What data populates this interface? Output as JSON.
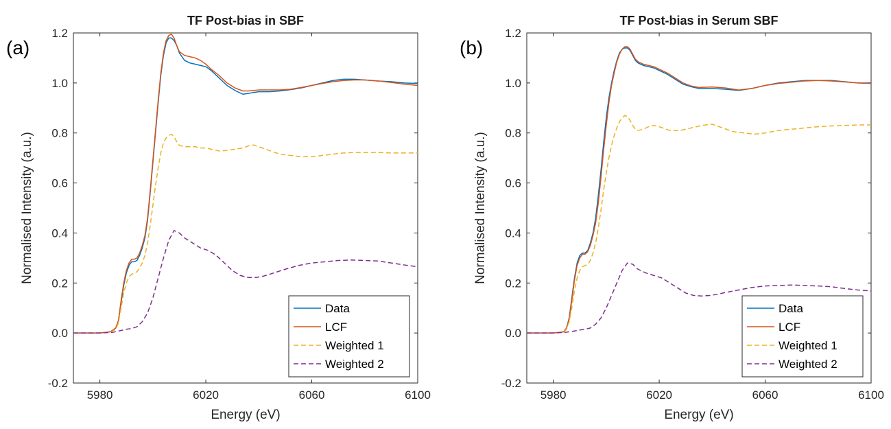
{
  "colors": {
    "data": "#0072BD",
    "lcf": "#D95319",
    "weighted1": "#EDB120",
    "weighted2": "#7E2F8E",
    "axis": "#262626"
  },
  "chart_data": [
    {
      "type": "line",
      "panel_label": "(a)",
      "title": "TF Post-bias in SBF",
      "xlabel": "Energy (eV)",
      "ylabel": "Normalised Intensity (a.u.)",
      "xlim": [
        5970,
        6100
      ],
      "ylim": [
        -0.2,
        1.2
      ],
      "xticks": [
        5980,
        6020,
        6060,
        6100
      ],
      "yticks": [
        -0.2,
        0.0,
        0.2,
        0.4,
        0.6,
        0.8,
        1.0,
        1.2
      ],
      "ytick_labels": [
        "-0.2",
        "0.0",
        "0.2",
        "0.4",
        "0.6",
        "0.8",
        "1.0",
        "1.2"
      ],
      "legend_position": "bottom-right",
      "series": [
        {
          "name": "Data",
          "style": "solid",
          "color_key": "data",
          "x": [
            5970,
            5980,
            5984,
            5986,
            5987,
            5988,
            5989,
            5990,
            5991,
            5992,
            5993,
            5994,
            5995,
            5996,
            5997,
            5998,
            5999,
            6000,
            6001,
            6002,
            6003,
            6004,
            6005,
            6006,
            6007,
            6008,
            6009,
            6010,
            6012,
            6014,
            6016,
            6018,
            6020,
            6022,
            6025,
            6028,
            6031,
            6034,
            6036,
            6038,
            6040,
            6044,
            6048,
            6052,
            6056,
            6060,
            6064,
            6068,
            6072,
            6076,
            6080,
            6085,
            6090,
            6095,
            6100
          ],
          "y": [
            0.0,
            0.0,
            0.005,
            0.02,
            0.05,
            0.12,
            0.19,
            0.24,
            0.27,
            0.285,
            0.285,
            0.29,
            0.31,
            0.34,
            0.38,
            0.45,
            0.56,
            0.68,
            0.8,
            0.92,
            1.03,
            1.11,
            1.16,
            1.18,
            1.18,
            1.17,
            1.15,
            1.12,
            1.09,
            1.08,
            1.075,
            1.07,
            1.065,
            1.05,
            1.02,
            0.99,
            0.97,
            0.955,
            0.958,
            0.962,
            0.965,
            0.965,
            0.968,
            0.973,
            0.98,
            0.99,
            1.0,
            1.01,
            1.015,
            1.015,
            1.012,
            1.008,
            1.005,
            1.0,
            0.998
          ]
        },
        {
          "name": "LCF",
          "style": "solid",
          "color_key": "lcf",
          "x": [
            5970,
            5980,
            5984,
            5986,
            5987,
            5988,
            5989,
            5990,
            5991,
            5992,
            5993,
            5994,
            5995,
            5996,
            5997,
            5998,
            5999,
            6000,
            6001,
            6002,
            6003,
            6004,
            6005,
            6006,
            6007,
            6008,
            6009,
            6010,
            6012,
            6014,
            6016,
            6018,
            6020,
            6022,
            6025,
            6028,
            6031,
            6034,
            6036,
            6038,
            6040,
            6044,
            6048,
            6052,
            6056,
            6060,
            6064,
            6068,
            6072,
            6076,
            6080,
            6085,
            6090,
            6095,
            6100
          ],
          "y": [
            0.0,
            0.0,
            0.005,
            0.02,
            0.05,
            0.13,
            0.2,
            0.25,
            0.28,
            0.295,
            0.295,
            0.3,
            0.32,
            0.35,
            0.39,
            0.46,
            0.57,
            0.69,
            0.81,
            0.93,
            1.04,
            1.12,
            1.17,
            1.19,
            1.195,
            1.18,
            1.15,
            1.125,
            1.11,
            1.105,
            1.1,
            1.09,
            1.075,
            1.055,
            1.03,
            1.0,
            0.98,
            0.968,
            0.968,
            0.97,
            0.972,
            0.972,
            0.972,
            0.975,
            0.982,
            0.99,
            0.998,
            1.005,
            1.01,
            1.012,
            1.012,
            1.008,
            1.002,
            0.995,
            0.99
          ]
        },
        {
          "name": "Weighted 1",
          "style": "dashed",
          "color_key": "weighted1",
          "x": [
            5970,
            5980,
            5984,
            5986,
            5987,
            5988,
            5989,
            5990,
            5991,
            5992,
            5993,
            5994,
            5995,
            5996,
            5997,
            5998,
            5999,
            6000,
            6001,
            6002,
            6003,
            6004,
            6005,
            6006,
            6007,
            6008,
            6009,
            6010,
            6012,
            6014,
            6016,
            6018,
            6020,
            6022,
            6025,
            6028,
            6031,
            6034,
            6036,
            6038,
            6040,
            6044,
            6048,
            6052,
            6056,
            6060,
            6064,
            6068,
            6072,
            6076,
            6080,
            6085,
            6090,
            6095,
            6100
          ],
          "y": [
            0.0,
            0.0,
            0.003,
            0.015,
            0.04,
            0.1,
            0.16,
            0.2,
            0.225,
            0.235,
            0.24,
            0.245,
            0.26,
            0.28,
            0.31,
            0.36,
            0.43,
            0.51,
            0.59,
            0.66,
            0.72,
            0.76,
            0.78,
            0.79,
            0.795,
            0.785,
            0.765,
            0.75,
            0.745,
            0.745,
            0.745,
            0.74,
            0.74,
            0.735,
            0.728,
            0.73,
            0.735,
            0.74,
            0.748,
            0.752,
            0.745,
            0.73,
            0.715,
            0.71,
            0.705,
            0.705,
            0.71,
            0.715,
            0.72,
            0.722,
            0.722,
            0.722,
            0.72,
            0.72,
            0.72
          ]
        },
        {
          "name": "Weighted 2",
          "style": "dashed",
          "color_key": "weighted2",
          "x": [
            5970,
            5980,
            5985,
            5988,
            5990,
            5992,
            5994,
            5996,
            5998,
            6000,
            6002,
            6004,
            6006,
            6008,
            6010,
            6012,
            6015,
            6018,
            6021,
            6024,
            6027,
            6030,
            6033,
            6036,
            6039,
            6042,
            6045,
            6050,
            6055,
            6060,
            6065,
            6070,
            6075,
            6080,
            6085,
            6090,
            6095,
            6100
          ],
          "y": [
            0.0,
            0.0,
            0.003,
            0.01,
            0.015,
            0.018,
            0.025,
            0.045,
            0.08,
            0.14,
            0.22,
            0.3,
            0.37,
            0.41,
            0.4,
            0.38,
            0.36,
            0.34,
            0.33,
            0.31,
            0.28,
            0.25,
            0.23,
            0.222,
            0.222,
            0.228,
            0.238,
            0.255,
            0.27,
            0.28,
            0.285,
            0.29,
            0.292,
            0.29,
            0.288,
            0.28,
            0.272,
            0.265
          ]
        }
      ]
    },
    {
      "type": "line",
      "panel_label": "(b)",
      "title": "TF Post-bias in Serum SBF",
      "xlabel": "Energy (eV)",
      "ylabel": "Normalised Intensity (a.u.)",
      "xlim": [
        5970,
        6100
      ],
      "ylim": [
        -0.2,
        1.2
      ],
      "xticks": [
        5980,
        6020,
        6060,
        6100
      ],
      "yticks": [
        -0.2,
        0.0,
        0.2,
        0.4,
        0.6,
        0.8,
        1.0,
        1.2
      ],
      "ytick_labels": [
        "-0.2",
        "0.0",
        "0.2",
        "0.4",
        "0.6",
        "0.8",
        "1.0",
        "1.2"
      ],
      "legend_position": "bottom-right",
      "series": [
        {
          "name": "Data",
          "style": "solid",
          "color_key": "data",
          "x": [
            5970,
            5980,
            5984,
            5985,
            5986,
            5987,
            5988,
            5989,
            5990,
            5991,
            5992,
            5993,
            5994,
            5995,
            5996,
            5997,
            5998,
            5999,
            6000,
            6001,
            6002,
            6003,
            6004,
            6005,
            6006,
            6007,
            6008,
            6009,
            6010,
            6011,
            6012,
            6013,
            6014,
            6016,
            6018,
            6020,
            6023,
            6026,
            6029,
            6032,
            6035,
            6040,
            6045,
            6050,
            6055,
            6060,
            6065,
            6070,
            6075,
            6080,
            6085,
            6090,
            6095,
            6100
          ],
          "y": [
            0.0,
            0.0,
            0.005,
            0.02,
            0.06,
            0.14,
            0.22,
            0.28,
            0.31,
            0.32,
            0.32,
            0.33,
            0.36,
            0.4,
            0.46,
            0.55,
            0.65,
            0.76,
            0.86,
            0.94,
            1.0,
            1.05,
            1.09,
            1.12,
            1.135,
            1.14,
            1.14,
            1.13,
            1.11,
            1.09,
            1.08,
            1.075,
            1.07,
            1.065,
            1.06,
            1.05,
            1.035,
            1.015,
            0.995,
            0.985,
            0.978,
            0.978,
            0.975,
            0.97,
            0.978,
            0.99,
            1.0,
            1.005,
            1.01,
            1.01,
            1.01,
            1.005,
            1.0,
            1.0
          ]
        },
        {
          "name": "LCF",
          "style": "solid",
          "color_key": "lcf",
          "x": [
            5970,
            5980,
            5984,
            5985,
            5986,
            5987,
            5988,
            5989,
            5990,
            5991,
            5992,
            5993,
            5994,
            5995,
            5996,
            5997,
            5998,
            5999,
            6000,
            6001,
            6002,
            6003,
            6004,
            6005,
            6006,
            6007,
            6008,
            6009,
            6010,
            6011,
            6012,
            6013,
            6014,
            6016,
            6018,
            6020,
            6023,
            6026,
            6029,
            6032,
            6035,
            6040,
            6045,
            6050,
            6055,
            6060,
            6065,
            6070,
            6075,
            6080,
            6085,
            6090,
            6095,
            6100
          ],
          "y": [
            0.0,
            0.0,
            0.005,
            0.02,
            0.055,
            0.13,
            0.21,
            0.27,
            0.3,
            0.315,
            0.315,
            0.325,
            0.35,
            0.39,
            0.44,
            0.52,
            0.62,
            0.73,
            0.83,
            0.92,
            0.99,
            1.04,
            1.085,
            1.115,
            1.135,
            1.145,
            1.145,
            1.135,
            1.115,
            1.095,
            1.085,
            1.08,
            1.075,
            1.07,
            1.065,
            1.055,
            1.04,
            1.02,
            1.0,
            0.988,
            0.982,
            0.984,
            0.98,
            0.972,
            0.978,
            0.99,
            0.998,
            1.003,
            1.008,
            1.01,
            1.008,
            1.004,
            1.0,
            0.998
          ]
        },
        {
          "name": "Weighted 1",
          "style": "dashed",
          "color_key": "weighted1",
          "x": [
            5970,
            5980,
            5984,
            5985,
            5986,
            5987,
            5988,
            5989,
            5990,
            5991,
            5992,
            5993,
            5994,
            5995,
            5996,
            5997,
            5998,
            5999,
            6000,
            6001,
            6002,
            6003,
            6004,
            6005,
            6006,
            6007,
            6008,
            6009,
            6010,
            6011,
            6012,
            6014,
            6016,
            6018,
            6020,
            6024,
            6028,
            6032,
            6036,
            6040,
            6044,
            6048,
            6052,
            6056,
            6060,
            6065,
            6070,
            6075,
            6080,
            6085,
            6090,
            6095,
            6100
          ],
          "y": [
            0.0,
            0.0,
            0.004,
            0.015,
            0.045,
            0.1,
            0.17,
            0.22,
            0.25,
            0.265,
            0.27,
            0.275,
            0.29,
            0.32,
            0.36,
            0.42,
            0.49,
            0.57,
            0.64,
            0.7,
            0.75,
            0.79,
            0.82,
            0.845,
            0.86,
            0.87,
            0.865,
            0.85,
            0.83,
            0.815,
            0.81,
            0.815,
            0.825,
            0.83,
            0.825,
            0.81,
            0.81,
            0.82,
            0.83,
            0.835,
            0.82,
            0.805,
            0.8,
            0.795,
            0.8,
            0.81,
            0.815,
            0.82,
            0.825,
            0.828,
            0.83,
            0.832,
            0.832
          ]
        },
        {
          "name": "Weighted 2",
          "style": "dashed",
          "color_key": "weighted2",
          "x": [
            5970,
            5980,
            5985,
            5988,
            5990,
            5992,
            5994,
            5996,
            5998,
            6000,
            6002,
            6004,
            6006,
            6008,
            6010,
            6012,
            6015,
            6018,
            6021,
            6024,
            6027,
            6030,
            6033,
            6036,
            6039,
            6042,
            6045,
            6050,
            6055,
            6060,
            6065,
            6070,
            6075,
            6080,
            6085,
            6090,
            6095,
            6100
          ],
          "y": [
            0.0,
            0.0,
            0.003,
            0.008,
            0.012,
            0.015,
            0.02,
            0.035,
            0.06,
            0.1,
            0.15,
            0.2,
            0.25,
            0.28,
            0.275,
            0.255,
            0.24,
            0.23,
            0.22,
            0.2,
            0.18,
            0.16,
            0.15,
            0.148,
            0.15,
            0.155,
            0.162,
            0.172,
            0.182,
            0.188,
            0.19,
            0.192,
            0.19,
            0.188,
            0.185,
            0.178,
            0.172,
            0.168
          ]
        }
      ]
    }
  ]
}
